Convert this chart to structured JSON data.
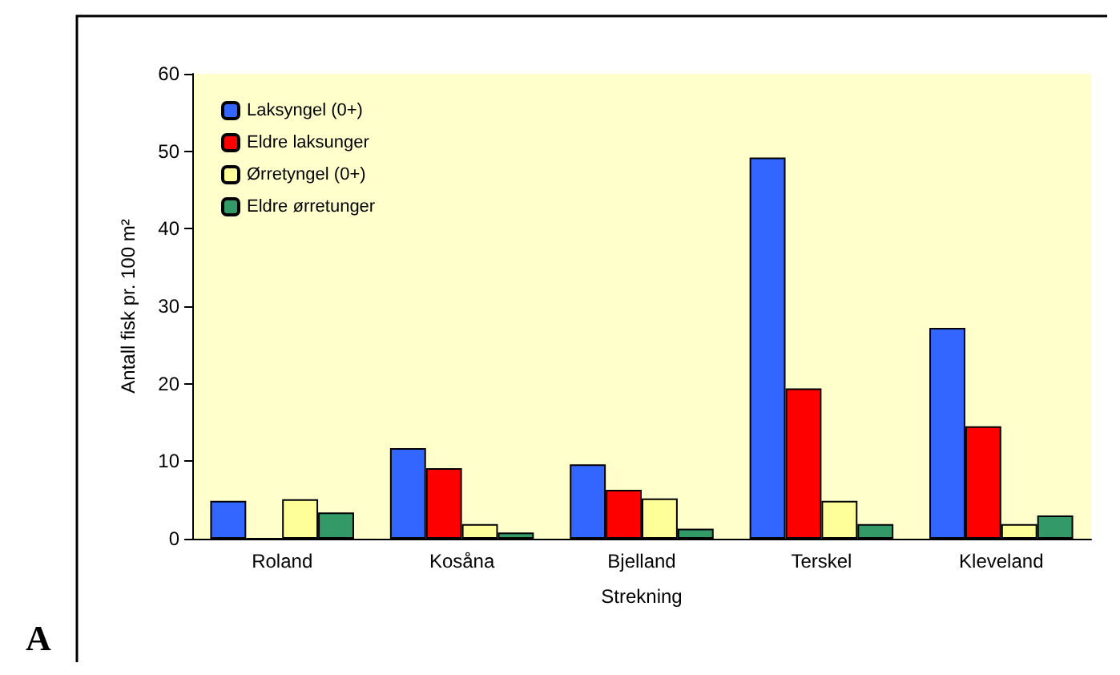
{
  "chart_data": {
    "type": "bar",
    "xlabel": "Strekning",
    "ylabel": "Antall fisk pr. 100 m²",
    "categories": [
      "Roland",
      "Kosåna",
      "Bjelland",
      "Terskel",
      "Kleveland"
    ],
    "series": [
      {
        "name": "Laksyngel (0+)",
        "color": "#3366ff",
        "values": [
          4.9,
          11.7,
          9.6,
          49.2,
          27.2
        ]
      },
      {
        "name": "Eldre laksunger",
        "color": "#ff0000",
        "values": [
          0,
          9.1,
          6.3,
          19.4,
          14.5
        ]
      },
      {
        "name": "Ørretyngel (0+)",
        "color": "#ffff99",
        "values": [
          5.1,
          1.9,
          5.2,
          4.9,
          1.9
        ]
      },
      {
        "name": "Eldre ørretunger",
        "color": "#339966",
        "values": [
          3.4,
          0.8,
          1.3,
          1.9,
          3.0
        ]
      }
    ],
    "ylim": [
      0,
      60
    ],
    "yticks": [
      0,
      10,
      20,
      30,
      40,
      50,
      60
    ],
    "grid": false,
    "legend": "top left",
    "annotations": [
      "A"
    ]
  }
}
